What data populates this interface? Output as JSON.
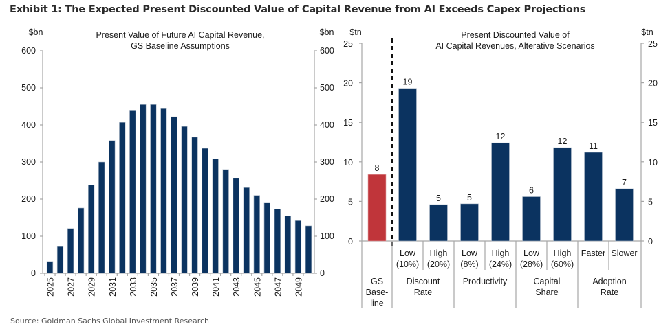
{
  "title": "Exhibit 1: The Expected Present Discounted Value of Capital Revenue from AI Exceeds Capex Projections",
  "source": "Source: Goldman Sachs Global Investment Research",
  "colors": {
    "navy": "#0b3360",
    "red": "#c0353a",
    "axis": "#a6a6a6"
  },
  "chart_data": [
    {
      "type": "bar",
      "title": "Present Value of Future AI Capital Revenue,",
      "subtitle": "GS Baseline Assumptions",
      "ylabel_left": "$bn",
      "ylabel_right": "$bn",
      "ylim": [
        0,
        600
      ],
      "yticks": [
        "0",
        "100",
        "200",
        "300",
        "400",
        "500",
        "600"
      ],
      "categories": [
        "2025",
        "2026",
        "2027",
        "2028",
        "2029",
        "2030",
        "2031",
        "2032",
        "2033",
        "2034",
        "2035",
        "2036",
        "2037",
        "2038",
        "2039",
        "2040",
        "2041",
        "2042",
        "2043",
        "2044",
        "2045",
        "2046",
        "2047",
        "2048",
        "2049",
        "2050"
      ],
      "xtick_labels": [
        "2025",
        "2027",
        "2029",
        "2031",
        "2033",
        "2035",
        "2037",
        "2039",
        "2041",
        "2043",
        "2045",
        "2047",
        "2049"
      ],
      "values": [
        32,
        72,
        121,
        176,
        238,
        300,
        358,
        407,
        440,
        455,
        455,
        444,
        422,
        396,
        367,
        337,
        308,
        280,
        256,
        231,
        210,
        191,
        173,
        155,
        142,
        128
      ],
      "grid": false
    },
    {
      "type": "bar",
      "title": "Present Discounted Value of",
      "subtitle": "AI Capital Revenues,  Alterative Scenarios",
      "ylabel_left": "$tn",
      "ylabel_right": "$tn",
      "ylim": [
        0,
        25
      ],
      "yticks": [
        "0",
        "5",
        "10",
        "15",
        "20",
        "25"
      ],
      "bars": [
        {
          "label": [
            "",
            ""
          ],
          "group": "GS Base-line",
          "value": 8.4,
          "data_label": "8",
          "highlight": true
        },
        {
          "label": [
            "Low",
            "(10%)"
          ],
          "group": "Discount Rate",
          "value": 19.3,
          "data_label": "19"
        },
        {
          "label": [
            "High",
            "(20%)"
          ],
          "group": "Discount Rate",
          "value": 4.6,
          "data_label": "5"
        },
        {
          "label": [
            "Low",
            "(8%)"
          ],
          "group": "Productivity",
          "value": 4.7,
          "data_label": "5"
        },
        {
          "label": [
            "High",
            "(24%)"
          ],
          "group": "Productivity",
          "value": 12.4,
          "data_label": "12"
        },
        {
          "label": [
            "Low",
            "(28%)"
          ],
          "group": "Capital Share",
          "value": 5.6,
          "data_label": "6"
        },
        {
          "label": [
            "High",
            "(60%)"
          ],
          "group": "Capital Share",
          "value": 11.8,
          "data_label": "12"
        },
        {
          "label": [
            "Faster",
            ""
          ],
          "group": "Adoption Rate",
          "value": 11.2,
          "data_label": "11"
        },
        {
          "label": [
            "Slower",
            ""
          ],
          "group": "Adoption Rate",
          "value": 6.6,
          "data_label": "7"
        }
      ],
      "groups": [
        {
          "lines": [
            "GS",
            "Base-",
            "line"
          ]
        },
        {
          "lines": [
            "Discount",
            "Rate"
          ]
        },
        {
          "lines": [
            "Productivity"
          ]
        },
        {
          "lines": [
            "Capital",
            "Share"
          ]
        },
        {
          "lines": [
            "Adoption",
            "Rate"
          ]
        }
      ],
      "grid": false
    }
  ]
}
